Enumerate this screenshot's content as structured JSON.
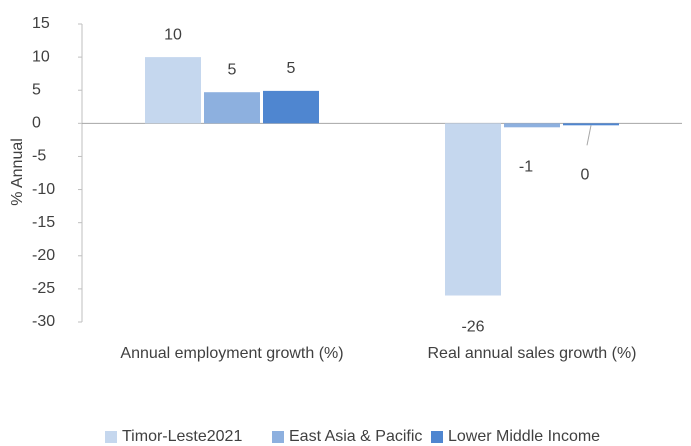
{
  "chart_data": {
    "type": "bar",
    "ylabel": "% Annual",
    "categories": [
      "Annual employment growth (%)",
      "Real annual sales growth (%)"
    ],
    "series": [
      {
        "name": "Timor-Leste2021",
        "color": "#c5d7ee",
        "values": [
          10,
          -26
        ],
        "value_labels": [
          "10",
          "-26"
        ]
      },
      {
        "name": "East Asia & Pacific",
        "color": "#8db0df",
        "values": [
          4.7,
          -0.6
        ],
        "value_labels": [
          "5",
          "-1"
        ]
      },
      {
        "name": "Lower Middle Income",
        "color": "#4f86d0",
        "values": [
          4.9,
          -0.3
        ],
        "value_labels": [
          "5",
          "0"
        ]
      }
    ],
    "ylim": [
      -30,
      15
    ],
    "yticks": [
      -30,
      -25,
      -20,
      -15,
      -10,
      -5,
      0,
      5,
      10,
      15
    ],
    "legend": "bottom"
  }
}
